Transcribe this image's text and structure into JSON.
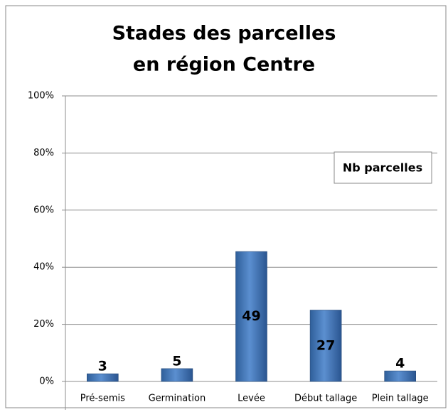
{
  "chart_data": {
    "type": "bar",
    "title": [
      "Stades des parcelles",
      "en région Centre"
    ],
    "categories": [
      "Pré-semis",
      "Germination",
      "Levée",
      "Début tallage",
      "Plein tallage"
    ],
    "values": [
      2.7,
      4.5,
      45.5,
      25,
      3.7
    ],
    "counts": [
      3,
      5,
      49,
      27,
      4
    ],
    "series_name": "Nb parcelles",
    "color": "#4f81bd",
    "ylim": [
      0,
      100
    ],
    "yticks": [
      {
        "value": 0,
        "label": "0%"
      },
      {
        "value": 20,
        "label": "20%"
      },
      {
        "value": 40,
        "label": "40%"
      },
      {
        "value": 60,
        "label": "60%"
      },
      {
        "value": 80,
        "label": "80%"
      },
      {
        "value": 100,
        "label": "100%"
      }
    ],
    "grid": true
  }
}
